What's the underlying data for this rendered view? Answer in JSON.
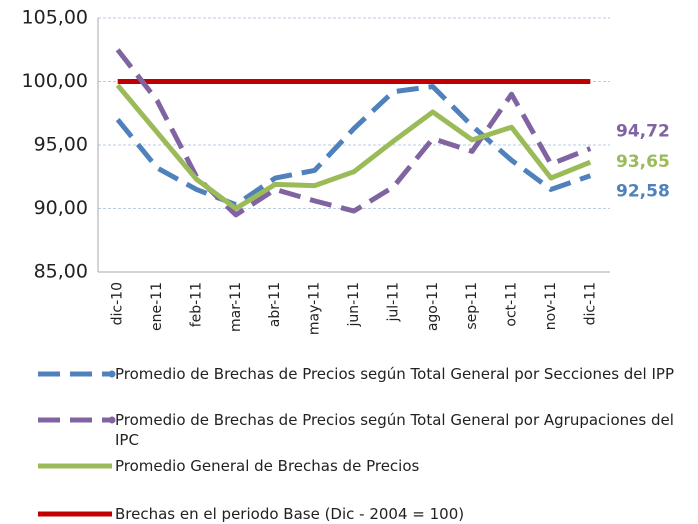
{
  "chart_data": {
    "type": "line",
    "categories": [
      "dic-10",
      "ene-11",
      "feb-11",
      "mar-11",
      "abr-11",
      "may-11",
      "jun-11",
      "jul-11",
      "ago-11",
      "sep-11",
      "oct-11",
      "nov-11",
      "dic-11"
    ],
    "ylim": [
      85,
      105
    ],
    "yticks": [
      {
        "value": 85,
        "label": "85,00"
      },
      {
        "value": 90,
        "label": "90,00"
      },
      {
        "value": 95,
        "label": "95,00"
      },
      {
        "value": 100,
        "label": "100,00"
      },
      {
        "value": 105,
        "label": "105,00"
      }
    ],
    "grid": true,
    "series": [
      {
        "name": "Promedio de Brechas de Precios según Total General por Secciones del IPP",
        "color": "#4f81bd",
        "dashed": true,
        "values": [
          97.0,
          93.2,
          91.5,
          90.3,
          92.4,
          93.0,
          96.3,
          99.2,
          99.6,
          96.5,
          93.8,
          91.5,
          92.58
        ],
        "value_labels": [
          null,
          null,
          null,
          null,
          null,
          null,
          null,
          null,
          null,
          null,
          null,
          null,
          "92,58"
        ]
      },
      {
        "name": "Promedio de Brechas de Precios según Total General por Agrupaciones del IPC",
        "color": "#8064a2",
        "dashed": true,
        "values": [
          102.5,
          98.5,
          92.5,
          89.5,
          91.5,
          90.6,
          89.8,
          91.7,
          95.5,
          94.5,
          99.0,
          93.5,
          94.72
        ],
        "value_labels": [
          null,
          null,
          null,
          null,
          null,
          null,
          null,
          null,
          null,
          null,
          null,
          null,
          "94,72"
        ]
      },
      {
        "name": "Promedio General de Brechas de Precios",
        "color": "#9bbb59",
        "dashed": false,
        "values": [
          99.7,
          96.0,
          92.3,
          90.0,
          91.9,
          91.8,
          92.9,
          95.3,
          97.6,
          95.4,
          96.4,
          92.4,
          93.65
        ],
        "value_labels": [
          null,
          null,
          null,
          null,
          null,
          null,
          null,
          null,
          null,
          null,
          null,
          null,
          "93,65"
        ]
      },
      {
        "name": "Brechas en el periodo Base (Dic - 2004 = 100)",
        "color": "#c00000",
        "dashed": false,
        "values": [
          100,
          100,
          100,
          100,
          100,
          100,
          100,
          100,
          100,
          100,
          100,
          100,
          100
        ]
      }
    ]
  }
}
